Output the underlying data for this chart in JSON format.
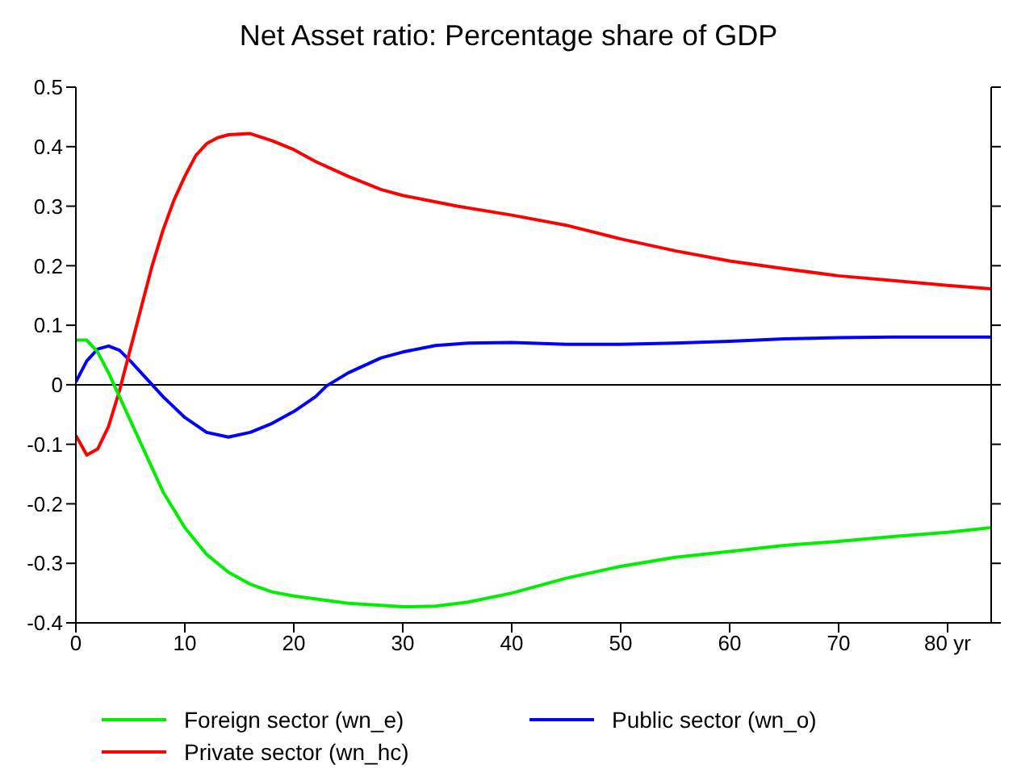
{
  "chart_data": {
    "type": "line",
    "title": "Net Asset ratio: Percentage share of GDP",
    "xlim": [
      0,
      84
    ],
    "xticks": [
      0,
      10,
      20,
      30,
      40,
      50,
      60,
      70,
      {
        "value": 80,
        "label": "80 yr"
      }
    ],
    "ylim": [
      -0.4,
      0.5
    ],
    "yticks": [
      -0.4,
      -0.3,
      -0.2,
      -0.1,
      0,
      0.1,
      0.2,
      0.3,
      0.4,
      0.5
    ],
    "grid": false,
    "legend": "bottom",
    "marker": "none",
    "line_style": "solid",
    "ref_lines": [
      {
        "axis": "y",
        "value": 0,
        "color": "#000000"
      }
    ],
    "series": [
      {
        "name": "Public sector (wn_o)",
        "color": "#0000ff",
        "x": [
          0,
          1,
          2,
          3,
          4,
          5,
          6,
          7,
          8,
          10,
          12,
          14,
          16,
          18,
          20,
          22,
          23,
          25,
          28,
          30,
          33,
          36,
          40,
          45,
          50,
          55,
          60,
          65,
          70,
          75,
          80,
          84
        ],
        "values": [
          0.005,
          0.04,
          0.06,
          0.065,
          0.058,
          0.04,
          0.02,
          0,
          -0.02,
          -0.055,
          -0.08,
          -0.088,
          -0.08,
          -0.065,
          -0.045,
          -0.02,
          -0.002,
          0.02,
          0.045,
          0.055,
          0.066,
          0.07,
          0.071,
          0.068,
          0.068,
          0.07,
          0.073,
          0.077,
          0.079,
          0.08,
          0.08,
          0.08
        ]
      },
      {
        "name": "Private sector (wn_hc)",
        "color": "#ff0000",
        "x": [
          0,
          1,
          2,
          3,
          4,
          5,
          6,
          7,
          8,
          9,
          10,
          11,
          12,
          13,
          14,
          16,
          18,
          20,
          22,
          25,
          28,
          30,
          35,
          40,
          45,
          50,
          55,
          60,
          65,
          70,
          75,
          80,
          84
        ],
        "values": [
          -0.085,
          -0.118,
          -0.108,
          -0.07,
          -0.01,
          0.06,
          0.13,
          0.2,
          0.26,
          0.31,
          0.35,
          0.385,
          0.405,
          0.415,
          0.42,
          0.422,
          0.41,
          0.395,
          0.375,
          0.35,
          0.328,
          0.318,
          0.3,
          0.285,
          0.268,
          0.245,
          0.225,
          0.208,
          0.195,
          0.183,
          0.175,
          0.167,
          0.161
        ]
      },
      {
        "name": "Foreign sector (wn_e)",
        "color": "#00ee00",
        "x": [
          0,
          1,
          2,
          3,
          4,
          5,
          6,
          7,
          8,
          10,
          12,
          14,
          16,
          18,
          20,
          25,
          30,
          33,
          36,
          40,
          45,
          50,
          55,
          60,
          65,
          70,
          75,
          80,
          84
        ],
        "values": [
          0.075,
          0.075,
          0.055,
          0.02,
          -0.02,
          -0.06,
          -0.1,
          -0.14,
          -0.18,
          -0.24,
          -0.285,
          -0.315,
          -0.335,
          -0.348,
          -0.355,
          -0.367,
          -0.373,
          -0.372,
          -0.365,
          -0.35,
          -0.325,
          -0.305,
          -0.29,
          -0.28,
          -0.27,
          -0.263,
          -0.255,
          -0.248,
          -0.24
        ]
      }
    ]
  }
}
